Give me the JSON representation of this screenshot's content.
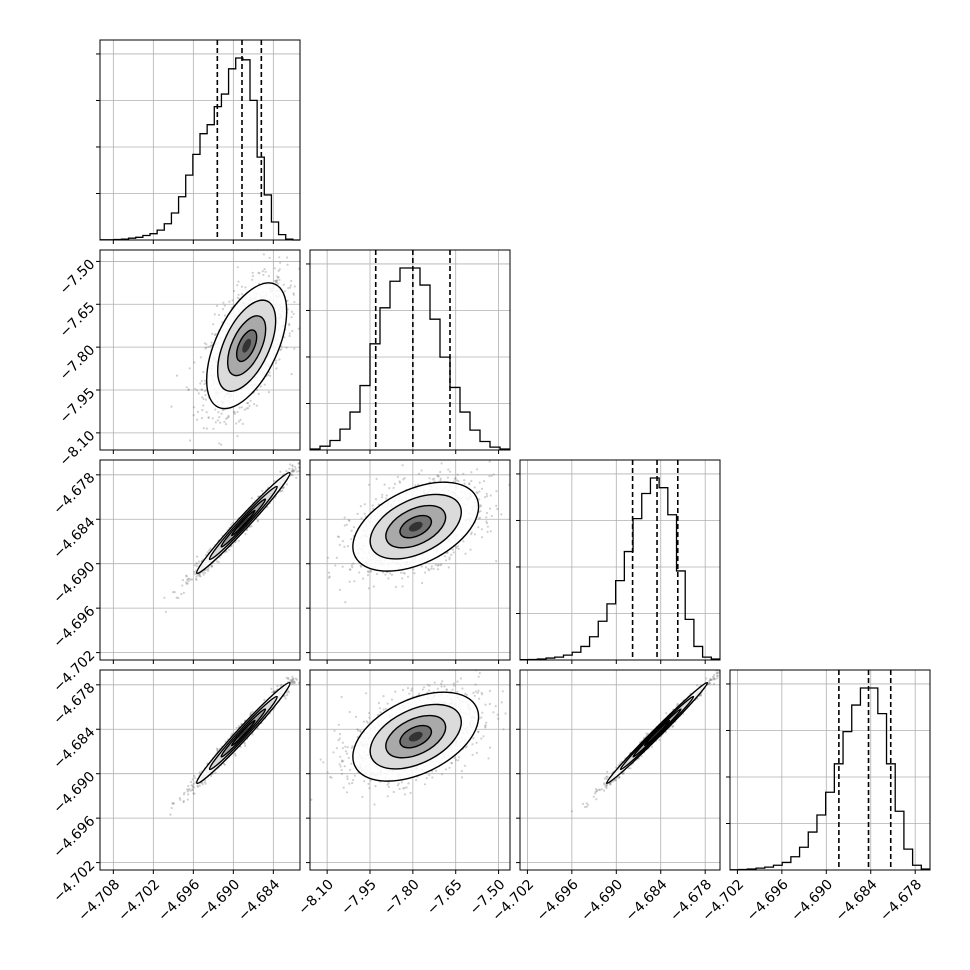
{
  "chart_data": {
    "type": "corner",
    "parameters": 4,
    "grid": true,
    "axis_ranges": [
      [
        -4.71,
        -4.68
      ],
      [
        -8.16,
        -7.46
      ],
      [
        -4.703,
        -4.676
      ],
      [
        -4.703,
        -4.676
      ]
    ],
    "x_tick_labels": [
      [
        "−4.708",
        "−4.702",
        "−4.696",
        "−4.690",
        "−4.684"
      ],
      [
        "−8.10",
        "−7.95",
        "−7.80",
        "−7.65",
        "−7.50"
      ],
      [
        "−4.702",
        "−4.696",
        "−4.690",
        "−4.684",
        "−4.678"
      ],
      [
        "−4.702",
        "−4.696",
        "−4.690",
        "−4.684",
        "−4.678"
      ]
    ],
    "y_tick_labels": {
      "row1": [
        "−7.50",
        "−7.65",
        "−7.80",
        "−7.95",
        "−8.10"
      ],
      "row2": [
        "−4.678",
        "−4.684",
        "−4.690",
        "−4.696",
        "−4.702"
      ],
      "row3": [
        "−4.678",
        "−4.684",
        "−4.690",
        "−4.696",
        "−4.702"
      ]
    },
    "histograms": [
      {
        "parameter": 0,
        "bins_start": -4.71,
        "bins_end": -4.68,
        "counts": [
          0.2,
          0.3,
          0.5,
          1,
          2,
          3,
          5,
          7,
          11,
          18,
          30,
          48,
          72,
          95,
          118,
          128,
          148,
          162,
          190,
          202,
          200,
          155,
          92,
          50,
          20,
          6,
          1,
          0
        ],
        "quantiles": [
          -4.6924,
          -4.6887,
          -4.6858
        ]
      },
      {
        "parameter": 1,
        "bins_start": -8.16,
        "bins_end": -7.46,
        "counts": [
          1,
          4,
          10,
          22,
          40,
          68,
          112,
          150,
          178,
          192,
          192,
          174,
          138,
          98,
          66,
          40,
          21,
          9,
          3,
          1
        ],
        "quantiles": [
          -7.93,
          -7.8,
          -7.67
        ]
      },
      {
        "parameter": 2,
        "bins_start": -4.703,
        "bins_end": -4.676,
        "counts": [
          0.3,
          0.5,
          1,
          2,
          3,
          5,
          8,
          14,
          24,
          40,
          58,
          82,
          112,
          146,
          172,
          188,
          178,
          150,
          92,
          42,
          14,
          3,
          1
        ],
        "quantiles": [
          -4.6878,
          -4.6845,
          -4.6817
        ]
      },
      {
        "parameter": 3,
        "bins_start": -4.703,
        "bins_end": -4.676,
        "counts": [
          0.3,
          0.5,
          1,
          2,
          3,
          5,
          8,
          14,
          24,
          40,
          58,
          82,
          112,
          146,
          174,
          192,
          192,
          165,
          112,
          62,
          22,
          5,
          1
        ],
        "quantiles": [
          -4.6883,
          -4.6843,
          -4.6813
        ]
      }
    ],
    "scatter_panels": [
      {
        "row": 1,
        "col": 0,
        "x_center": -4.688,
        "x_sd": 0.003,
        "y_center": -7.795,
        "y_sd": 0.11,
        "corr": 0.55,
        "contour_scale": 1.0
      },
      {
        "row": 2,
        "col": 0,
        "x_center": -4.6885,
        "x_sd": 0.0035,
        "y_center": -4.6845,
        "y_sd": 0.0034,
        "corr": 0.985,
        "contour_scale": 1.0
      },
      {
        "row": 2,
        "col": 1,
        "x_center": -7.79,
        "x_sd": 0.11,
        "y_center": -4.685,
        "y_sd": 0.003,
        "corr": 0.45,
        "contour_scale": 1.0
      },
      {
        "row": 3,
        "col": 0,
        "x_center": -4.6885,
        "x_sd": 0.0035,
        "y_center": -4.6845,
        "y_sd": 0.0034,
        "corr": 0.985,
        "contour_scale": 1.0
      },
      {
        "row": 3,
        "col": 1,
        "x_center": -7.79,
        "x_sd": 0.11,
        "y_center": -4.685,
        "y_sd": 0.003,
        "corr": 0.45,
        "contour_scale": 1.0
      },
      {
        "row": 3,
        "col": 2,
        "x_center": -4.6845,
        "x_sd": 0.0034,
        "y_center": -4.6845,
        "y_sd": 0.0034,
        "corr": 0.993,
        "contour_scale": 1.0
      }
    ]
  }
}
